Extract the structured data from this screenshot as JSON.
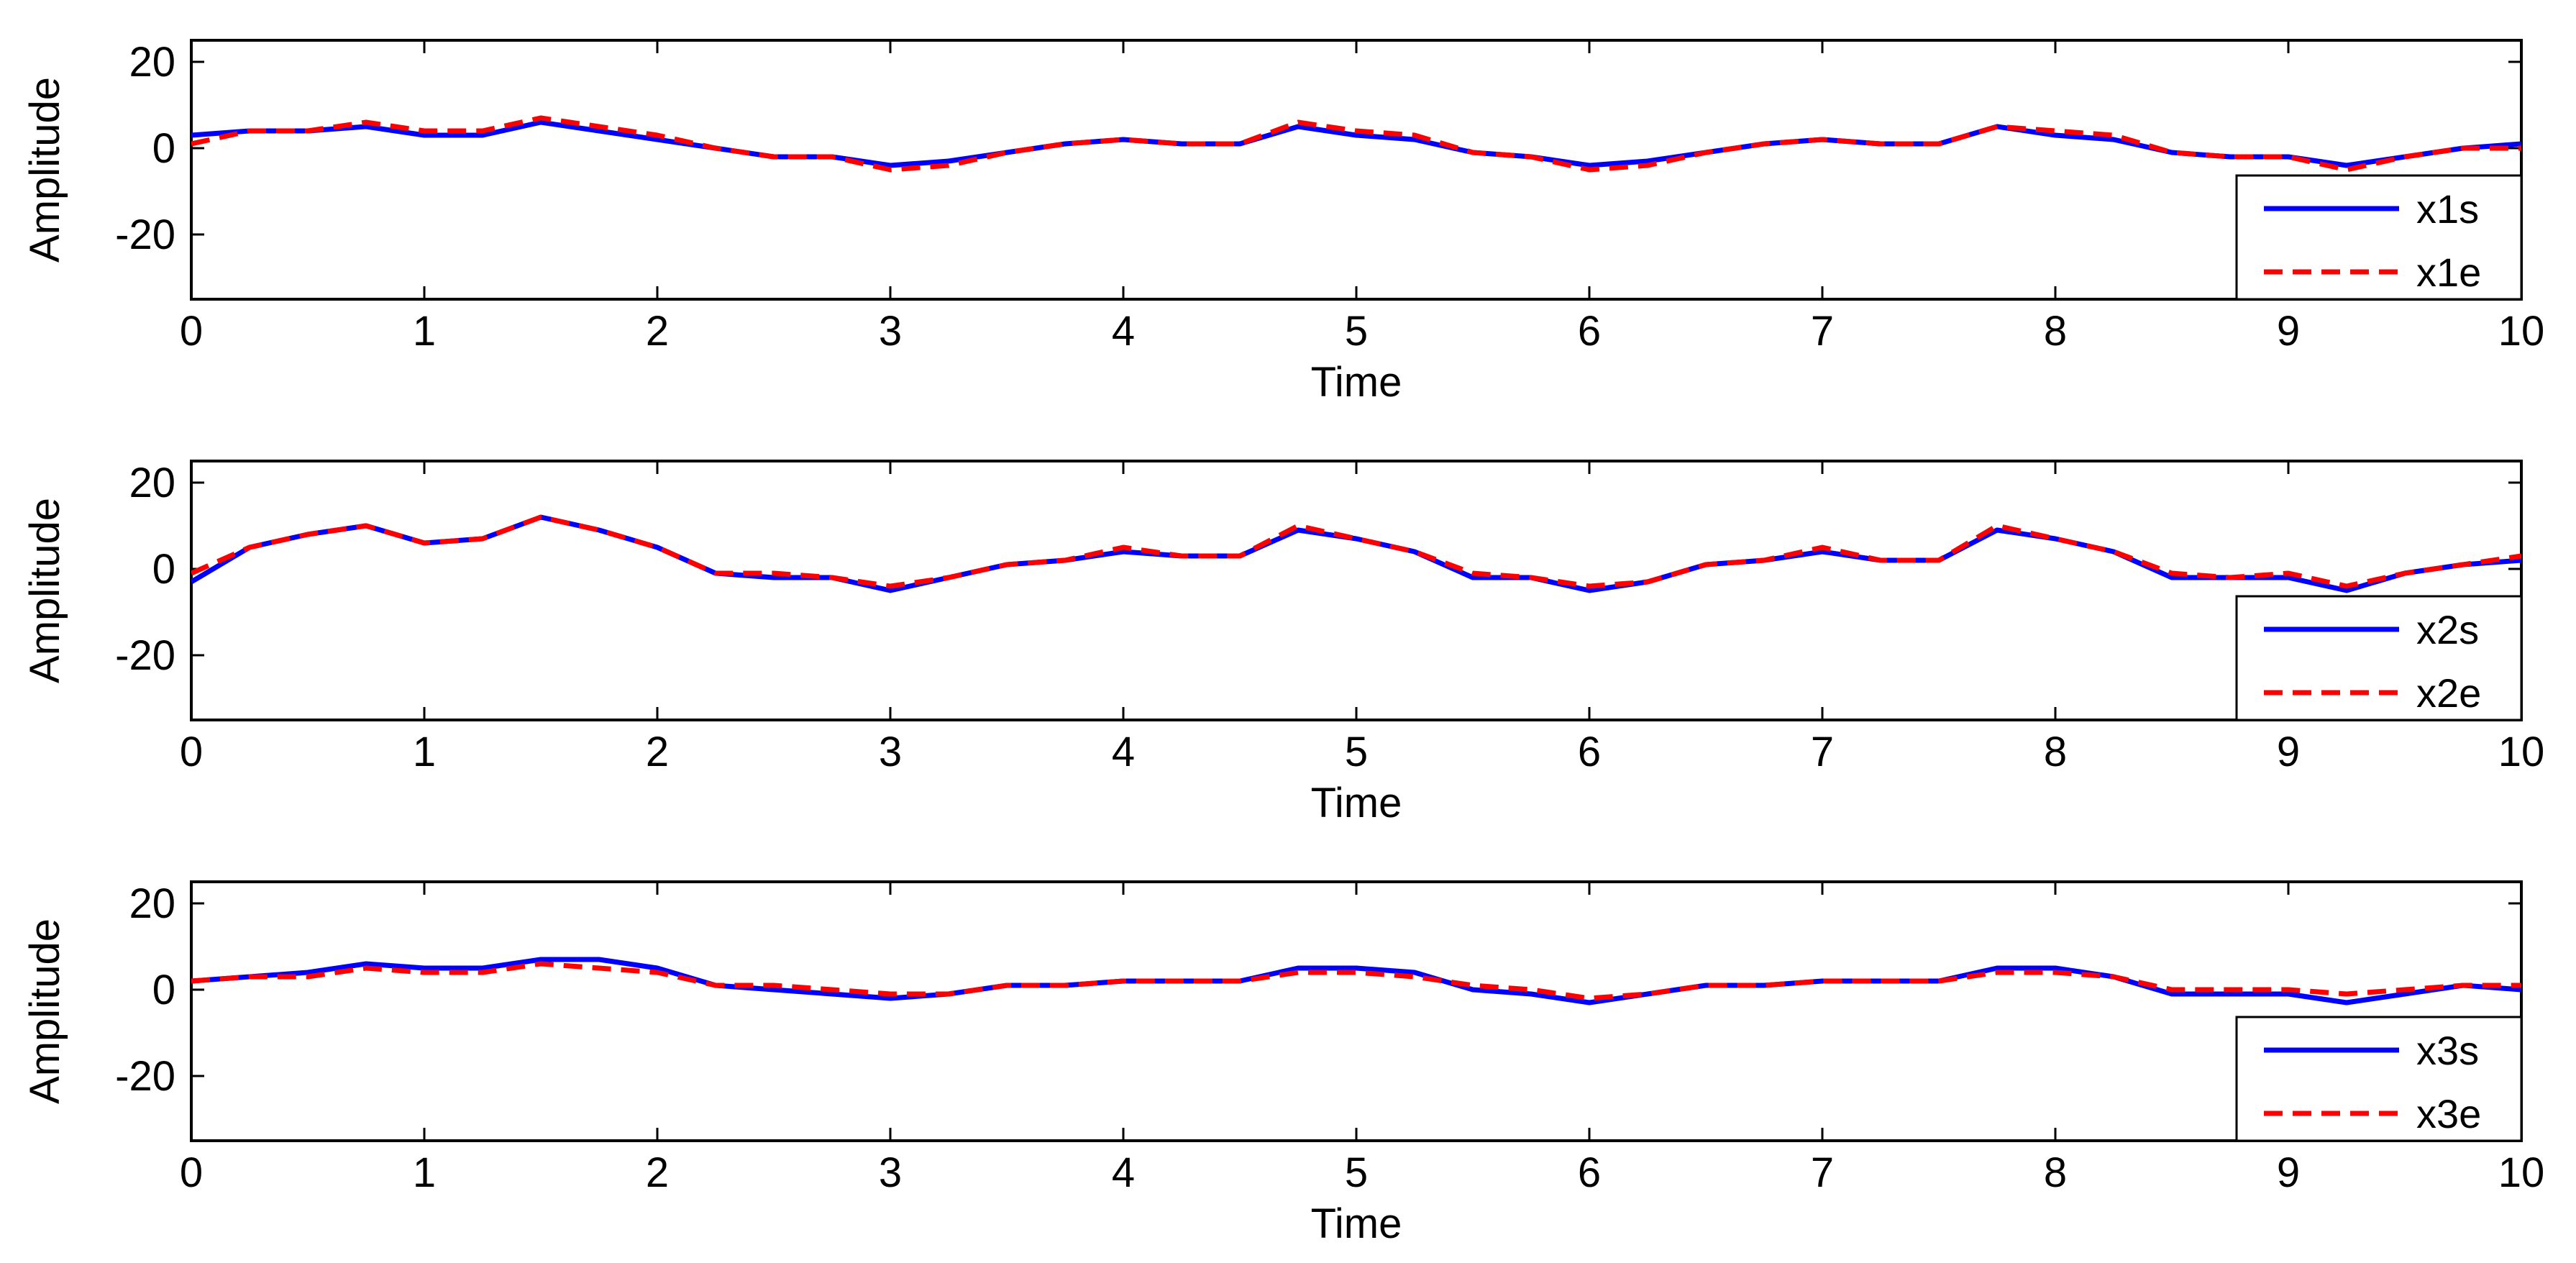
{
  "chart_data": [
    {
      "type": "line",
      "xlabel": "Time",
      "ylabel": "Amplitude",
      "xlim": [
        0,
        10
      ],
      "ylim": [
        -35,
        25
      ],
      "xticks": [
        "0",
        "1",
        "2",
        "3",
        "4",
        "5",
        "6",
        "7",
        "8",
        "9",
        "10"
      ],
      "yticks": [
        "20",
        "0",
        "-20"
      ],
      "legend_position": "bottom-right",
      "grid": false,
      "x": [
        0,
        0.25,
        0.5,
        0.75,
        1,
        1.25,
        1.5,
        1.75,
        2,
        2.25,
        2.5,
        2.75,
        3,
        3.25,
        3.5,
        3.75,
        4,
        4.25,
        4.5,
        4.75,
        5,
        5.25,
        5.5,
        5.75,
        6,
        6.25,
        6.5,
        6.75,
        7,
        7.25,
        7.5,
        7.75,
        8,
        8.25,
        8.5,
        8.75,
        9,
        9.25,
        9.5,
        9.75,
        10
      ],
      "series": [
        {
          "name": "x1s",
          "color": "#0000ff",
          "dash": "solid",
          "values": [
            3,
            4,
            4,
            5,
            3,
            3,
            6,
            4,
            2,
            0,
            -2,
            -2,
            -4,
            -3,
            -1,
            1,
            2,
            1,
            1,
            5,
            3,
            2,
            -1,
            -2,
            -4,
            -3,
            -1,
            1,
            2,
            1,
            1,
            5,
            3,
            2,
            -1,
            -2,
            -2,
            -4,
            -2,
            0,
            1
          ]
        },
        {
          "name": "x1e",
          "color": "#ff0000",
          "dash": "dashed",
          "values": [
            1,
            4,
            4,
            6,
            4,
            4,
            7,
            5,
            3,
            0,
            -2,
            -2,
            -5,
            -4,
            -1,
            1,
            2,
            1,
            1,
            6,
            4,
            3,
            -1,
            -2,
            -5,
            -4,
            -1,
            1,
            2,
            1,
            1,
            5,
            4,
            3,
            -1,
            -2,
            -2,
            -5,
            -2,
            0,
            0
          ]
        }
      ]
    },
    {
      "type": "line",
      "xlabel": "Time",
      "ylabel": "Amplitude",
      "xlim": [
        0,
        10
      ],
      "ylim": [
        -35,
        25
      ],
      "xticks": [
        "0",
        "1",
        "2",
        "3",
        "4",
        "5",
        "6",
        "7",
        "8",
        "9",
        "10"
      ],
      "yticks": [
        "20",
        "0",
        "-20"
      ],
      "legend_position": "bottom-right",
      "grid": false,
      "x": [
        0,
        0.25,
        0.5,
        0.75,
        1,
        1.25,
        1.5,
        1.75,
        2,
        2.25,
        2.5,
        2.75,
        3,
        3.25,
        3.5,
        3.75,
        4,
        4.25,
        4.5,
        4.75,
        5,
        5.25,
        5.5,
        5.75,
        6,
        6.25,
        6.5,
        6.75,
        7,
        7.25,
        7.5,
        7.75,
        8,
        8.25,
        8.5,
        8.75,
        9,
        9.25,
        9.5,
        9.75,
        10
      ],
      "series": [
        {
          "name": "x2s",
          "color": "#0000ff",
          "dash": "solid",
          "values": [
            -3,
            5,
            8,
            10,
            6,
            7,
            12,
            9,
            5,
            -1,
            -2,
            -2,
            -5,
            -2,
            1,
            2,
            4,
            3,
            3,
            9,
            7,
            4,
            -2,
            -2,
            -5,
            -3,
            1,
            2,
            4,
            2,
            2,
            9,
            7,
            4,
            -2,
            -2,
            -2,
            -5,
            -1,
            1,
            2
          ]
        },
        {
          "name": "x2e",
          "color": "#ff0000",
          "dash": "dashed",
          "values": [
            -1,
            5,
            8,
            10,
            6,
            7,
            12,
            9,
            5,
            -1,
            -1,
            -2,
            -4,
            -2,
            1,
            2,
            5,
            3,
            3,
            10,
            7,
            4,
            -1,
            -2,
            -4,
            -3,
            1,
            2,
            5,
            2,
            2,
            10,
            7,
            4,
            -1,
            -2,
            -1,
            -4,
            -1,
            1,
            3
          ]
        }
      ]
    },
    {
      "type": "line",
      "xlabel": "Time",
      "ylabel": "Amplitude",
      "xlim": [
        0,
        10
      ],
      "ylim": [
        -35,
        25
      ],
      "xticks": [
        "0",
        "1",
        "2",
        "3",
        "4",
        "5",
        "6",
        "7",
        "8",
        "9",
        "10"
      ],
      "yticks": [
        "20",
        "0",
        "-20"
      ],
      "legend_position": "bottom-right",
      "grid": false,
      "x": [
        0,
        0.25,
        0.5,
        0.75,
        1,
        1.25,
        1.5,
        1.75,
        2,
        2.25,
        2.5,
        2.75,
        3,
        3.25,
        3.5,
        3.75,
        4,
        4.25,
        4.5,
        4.75,
        5,
        5.25,
        5.5,
        5.75,
        6,
        6.25,
        6.5,
        6.75,
        7,
        7.25,
        7.5,
        7.75,
        8,
        8.25,
        8.5,
        8.75,
        9,
        9.25,
        9.5,
        9.75,
        10
      ],
      "series": [
        {
          "name": "x3s",
          "color": "#0000ff",
          "dash": "solid",
          "values": [
            2,
            3,
            4,
            6,
            5,
            5,
            7,
            7,
            5,
            1,
            0,
            -1,
            -2,
            -1,
            1,
            1,
            2,
            2,
            2,
            5,
            5,
            4,
            0,
            -1,
            -3,
            -1,
            1,
            1,
            2,
            2,
            2,
            5,
            5,
            3,
            -1,
            -1,
            -1,
            -3,
            -1,
            1,
            0
          ]
        },
        {
          "name": "x3e",
          "color": "#ff0000",
          "dash": "dashed",
          "values": [
            2,
            3,
            3,
            5,
            4,
            4,
            6,
            5,
            4,
            1,
            1,
            0,
            -1,
            -1,
            1,
            1,
            2,
            2,
            2,
            4,
            4,
            3,
            1,
            0,
            -2,
            -1,
            1,
            1,
            2,
            2,
            2,
            4,
            4,
            3,
            0,
            0,
            0,
            -1,
            0,
            1,
            1
          ]
        }
      ]
    }
  ]
}
